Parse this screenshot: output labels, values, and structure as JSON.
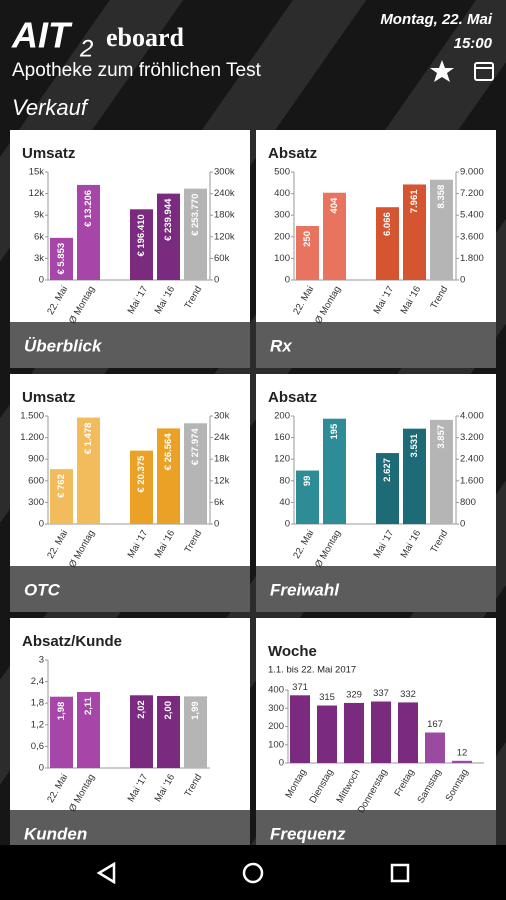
{
  "header": {
    "logo": "AIT",
    "logo_sub": "2",
    "brand": "eboard",
    "date": "Montag, 22. Mai",
    "time": "15:00",
    "pharmacy": "Apotheke zum fröhlichen Test",
    "section": "Verkauf"
  },
  "chart_data": [
    {
      "type": "bar",
      "title": "Umsatz",
      "footer": "Überblick",
      "categories": [
        "22. Mai",
        "Ø Montag",
        "Mai '17",
        "Mai '16",
        "Trend"
      ],
      "values": [
        5853,
        13206,
        196410,
        239944,
        253770
      ],
      "value_labels": [
        "€ 5.853",
        "€ 13.206",
        "€ 196.410",
        "€ 239.944",
        "€ 253.770"
      ],
      "colors": [
        "#a646a8",
        "#a646a8",
        "#7a2b80",
        "#7a2b80",
        "#b5b5b5"
      ],
      "bar_axis": [
        "y",
        "y",
        "y2",
        "y2",
        "y2"
      ],
      "ylim": [
        0,
        15000
      ],
      "yticks": [
        0,
        {
          "value": 3000,
          "label": "3k"
        },
        {
          "value": 6000,
          "label": "6k"
        },
        {
          "value": 9000,
          "label": "9k"
        },
        {
          "value": 12000,
          "label": "12k"
        },
        {
          "value": 15000,
          "label": "15k"
        }
      ],
      "y2lim": [
        0,
        300000
      ],
      "y2ticks": [
        0,
        {
          "value": 60000,
          "label": "60k"
        },
        {
          "value": 120000,
          "label": "120k"
        },
        {
          "value": 180000,
          "label": "180k"
        },
        {
          "value": 240000,
          "label": "240k"
        },
        {
          "value": 300000,
          "label": "300k"
        }
      ]
    },
    {
      "type": "bar",
      "title": "Absatz",
      "footer": "Rx",
      "categories": [
        "22. Mai",
        "Ø Montag",
        "Mai '17",
        "Mai '16",
        "Trend"
      ],
      "values": [
        250,
        404,
        6066,
        7961,
        8358
      ],
      "value_labels": [
        "250",
        "404",
        "6.066",
        "7.961",
        "8.358"
      ],
      "colors": [
        "#e8735f",
        "#e8735f",
        "#d4552f",
        "#d4552f",
        "#b5b5b5"
      ],
      "bar_axis": [
        "y",
        "y",
        "y2",
        "y2",
        "y2"
      ],
      "ylim": [
        0,
        500
      ],
      "yticks": [
        0,
        100,
        200,
        300,
        400,
        500
      ],
      "y2lim": [
        0,
        9000
      ],
      "y2ticks": [
        0,
        {
          "value": 1800,
          "label": "1.800"
        },
        {
          "value": 3600,
          "label": "3.600"
        },
        {
          "value": 5400,
          "label": "5.400"
        },
        {
          "value": 7200,
          "label": "7.200"
        },
        {
          "value": 9000,
          "label": "9.000"
        }
      ]
    },
    {
      "type": "bar",
      "title": "Umsatz",
      "footer": "OTC",
      "categories": [
        "22. Mai",
        "Ø Montag",
        "Mai '17",
        "Mai '16",
        "Trend"
      ],
      "values": [
        762,
        1478,
        20375,
        26564,
        27974
      ],
      "value_labels": [
        "€ 762",
        "€ 1.478",
        "€ 20.375",
        "€ 26.564",
        "€ 27.974"
      ],
      "colors": [
        "#f2bb5c",
        "#f2bb5c",
        "#eba126",
        "#eba126",
        "#b5b5b5"
      ],
      "bar_axis": [
        "y",
        "y",
        "y2",
        "y2",
        "y2"
      ],
      "ylim": [
        0,
        1500
      ],
      "yticks": [
        0,
        300,
        600,
        900,
        {
          "value": 1200,
          "label": "1.200"
        },
        {
          "value": 1500,
          "label": "1.500"
        }
      ],
      "y2lim": [
        0,
        30000
      ],
      "y2ticks": [
        0,
        {
          "value": 6000,
          "label": "6k"
        },
        {
          "value": 12000,
          "label": "12k"
        },
        {
          "value": 18000,
          "label": "18k"
        },
        {
          "value": 24000,
          "label": "24k"
        },
        {
          "value": 30000,
          "label": "30k"
        }
      ]
    },
    {
      "type": "bar",
      "title": "Absatz",
      "footer": "Freiwahl",
      "categories": [
        "22. Mai",
        "Ø Montag",
        "Mai '17",
        "Mai '16",
        "Trend"
      ],
      "values": [
        99,
        195,
        2627,
        3531,
        3857
      ],
      "value_labels": [
        "99",
        "195",
        "2.627",
        "3.531",
        "3.857"
      ],
      "colors": [
        "#2e8c96",
        "#2e8c96",
        "#1d6b76",
        "#1d6b76",
        "#b5b5b5"
      ],
      "bar_axis": [
        "y",
        "y",
        "y2",
        "y2",
        "y2"
      ],
      "ylim": [
        0,
        200
      ],
      "yticks": [
        0,
        40,
        80,
        120,
        160,
        200
      ],
      "y2lim": [
        0,
        4000
      ],
      "y2ticks": [
        0,
        800,
        {
          "value": 1600,
          "label": "1.600"
        },
        {
          "value": 2400,
          "label": "2.400"
        },
        {
          "value": 3200,
          "label": "3.200"
        },
        {
          "value": 4000,
          "label": "4.000"
        }
      ]
    },
    {
      "type": "bar",
      "title": "Absatz/Kunde",
      "footer": "Kunden",
      "categories": [
        "22. Mai",
        "Ø Montag",
        "Mai '17",
        "Mai '16",
        "Trend"
      ],
      "values": [
        1.98,
        2.11,
        2.02,
        2.0,
        1.99
      ],
      "value_labels": [
        "1,98",
        "2,11",
        "2,02",
        "2,00",
        "1,99"
      ],
      "colors": [
        "#a646a8",
        "#a646a8",
        "#7a2b80",
        "#7a2b80",
        "#b5b5b5"
      ],
      "ylim": [
        0,
        3
      ],
      "yticks": [
        0,
        {
          "value": 0.6,
          "label": "0,6"
        },
        {
          "value": 1.2,
          "label": "1,2"
        },
        {
          "value": 1.8,
          "label": "1,8"
        },
        {
          "value": 2.4,
          "label": "2,4"
        },
        3
      ]
    },
    {
      "type": "bar",
      "title": "Woche",
      "subtitle": "1.1. bis 22. Mai 2017",
      "footer": "Frequenz",
      "categories": [
        "Montag",
        "Dienstag",
        "Mittwoch",
        "Donnerstag",
        "Freitag",
        "Samstag",
        "Sonntag"
      ],
      "values": [
        371,
        315,
        329,
        337,
        332,
        167,
        12
      ],
      "colors": [
        "#7a2b80",
        "#7a2b80",
        "#7a2b80",
        "#7a2b80",
        "#7a2b80",
        "#9a4aa0",
        "#9a4aa0"
      ],
      "ylim": [
        0,
        400
      ],
      "yticks": [
        0,
        100,
        200,
        300,
        400
      ]
    }
  ]
}
